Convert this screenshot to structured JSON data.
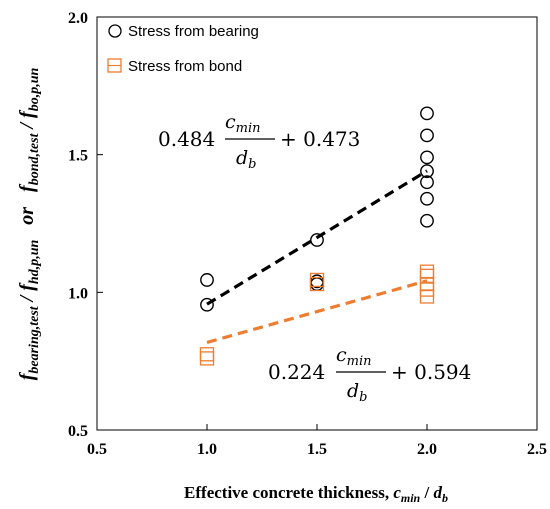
{
  "chart_data": {
    "type": "scatter",
    "xlim": [
      0.5,
      2.5
    ],
    "ylim": [
      0.5,
      2.0
    ],
    "xticks": [
      "0.5",
      "1.0",
      "1.5",
      "2.0",
      "2.5"
    ],
    "yticks": [
      "0.5",
      "1.0",
      "1.5",
      "2.0"
    ],
    "grid": false,
    "legend_position": "top-left",
    "xlabel": {
      "main": "Effective concrete thickness, ",
      "c": "c",
      "c_sub": "min",
      "slash": " / ",
      "d": "d",
      "d_sub": "b"
    },
    "ylabel": {
      "f1": "f",
      "f1_sub": "bearing,test",
      "sep1": " / ",
      "f2": "f",
      "f2_sub": "hd,p,un",
      "or": "   or   ",
      "f3": "f",
      "f3_sub": "bond,test",
      "sep2": " / ",
      "f4": "f",
      "f4_sub": "bo,p,un"
    },
    "series": [
      {
        "name": "Stress from bearing",
        "marker": "circle",
        "color": "#000000",
        "points": [
          [
            1.0,
            1.045
          ],
          [
            1.0,
            0.955
          ],
          [
            1.5,
            1.19
          ],
          [
            1.5,
            1.03
          ],
          [
            1.5,
            1.04
          ],
          [
            2.0,
            1.65
          ],
          [
            2.0,
            1.57
          ],
          [
            2.0,
            1.49
          ],
          [
            2.0,
            1.44
          ],
          [
            2.0,
            1.4
          ],
          [
            2.0,
            1.34
          ],
          [
            2.0,
            1.26
          ]
        ],
        "fit": {
          "slope": 0.484,
          "intercept": 0.473,
          "x_range": [
            1.0,
            2.0
          ]
        },
        "equation": {
          "coef": "0.484",
          "num": "c",
          "num_sub": "min",
          "den": "d",
          "den_sub": "b",
          "const": "+ 0.473"
        }
      },
      {
        "name": "Stress from bond",
        "marker": "square",
        "color": "#ED7D31",
        "points": [
          [
            1.0,
            0.775
          ],
          [
            1.0,
            0.76
          ],
          [
            1.5,
            1.045
          ],
          [
            1.5,
            1.03
          ],
          [
            2.0,
            1.075
          ],
          [
            2.0,
            1.06
          ],
          [
            2.0,
            1.03
          ],
          [
            2.0,
            1.01
          ],
          [
            2.0,
            0.985
          ]
        ],
        "fit": {
          "slope": 0.224,
          "intercept": 0.594,
          "x_range": [
            1.0,
            2.0
          ]
        },
        "equation": {
          "coef": "0.224",
          "num": "c",
          "num_sub": "min",
          "den": "d",
          "den_sub": "b",
          "const": "+ 0.594"
        }
      }
    ]
  }
}
